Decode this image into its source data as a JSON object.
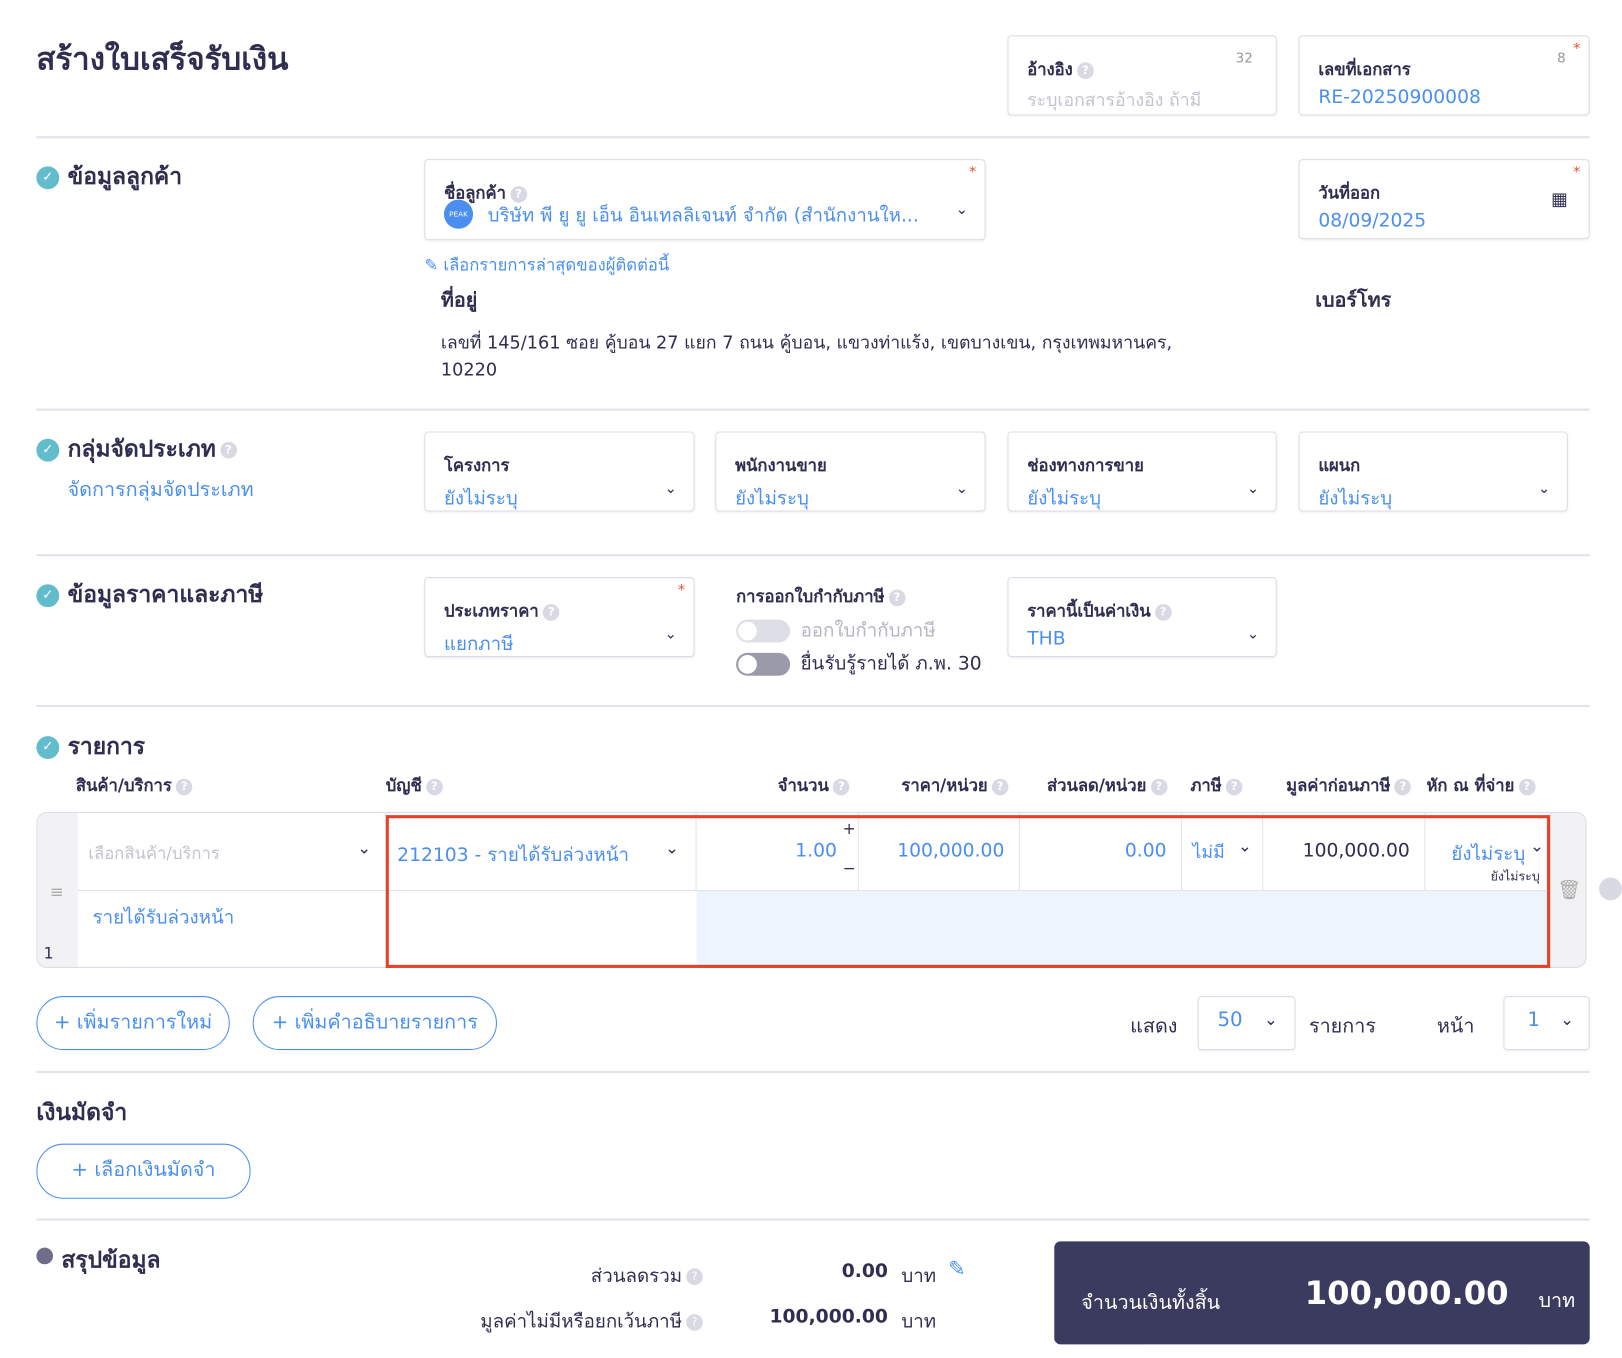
{
  "header": {
    "title": "สร้างใบเสร็จรับเงิน",
    "reference": {
      "label": "อ้างอิง",
      "counter": "32",
      "placeholder": "ระบุเอกสารอ้างอิง ถ้ามี"
    },
    "doc_no": {
      "label": "เลขที่เอกสาร",
      "counter": "8",
      "value": "RE-20250900008"
    }
  },
  "customer": {
    "section": "ข้อมูลลูกค้า",
    "name_label": "ชื่อลูกค้า",
    "name_value": "บริษัท พี ยู ยู เอ็น อินเทลลิเจนท์ จำกัด (สำนักงานให...",
    "avatar_text": "PEAK",
    "recent_link": "เลือกรายการล่าสุดของผู้ติดต่อนี้",
    "address_label": "ที่อยู่",
    "address_line1": "เลขที่ 145/161 ซอย คู้บอน 27 แยก 7 ถนน คู้บอน, แขวงท่าแร้ง, เขตบางเขน, กรุงเทพมหานคร,",
    "address_line2": "10220",
    "phone_label": "เบอร์โทร",
    "date_label": "วันที่ออก",
    "date_value": "08/09/2025"
  },
  "group": {
    "section": "กลุ่มจัดประเภท",
    "manage_link": "จัดการกลุ่มจัดประเภท",
    "fields": [
      {
        "label": "โครงการ",
        "value": "ยังไม่ระบุ"
      },
      {
        "label": "พนักงานขาย",
        "value": "ยังไม่ระบุ"
      },
      {
        "label": "ช่องทางการขาย",
        "value": "ยังไม่ระบุ"
      },
      {
        "label": "แผนก",
        "value": "ยังไม่ระบุ"
      }
    ]
  },
  "pricing": {
    "section": "ข้อมูลราคาและภาษี",
    "price_type_label": "ประเภทราคา",
    "price_type_value": "แยกภาษี",
    "tax_invoice_label": "การออกใบกำกับภาษี",
    "toggle1": {
      "label": "ออกใบกำกับภาษี",
      "on": false
    },
    "toggle2": {
      "label": "ยื่นรับรู้รายได้ ภ.พ. 30",
      "on": false
    },
    "currency_label": "ราคานี้เป็นค่าเงิน",
    "currency_value": "THB"
  },
  "items": {
    "section": "รายการ",
    "columns": [
      "สินค้า/บริการ",
      "บัญชี",
      "จำนวน",
      "ราคา/หน่วย",
      "ส่วนลด/หน่วย",
      "ภาษี",
      "มูลค่าก่อนภาษี",
      "หัก ณ ที่จ่าย"
    ],
    "row": {
      "index": "1",
      "product_placeholder": "เลือกสินค้า/บริการ",
      "account": "212103 - รายได้รับล่วงหน้า",
      "quantity": "1.00",
      "price": "100,000.00",
      "discount": "0.00",
      "tax": "ไม่มี",
      "pretax": "100,000.00",
      "withholding": "ยังไม่ระบุ",
      "withholding_sub": "ยังไม่ระบุ",
      "description": "รายได้รับล่วงหน้า",
      "plus": "+",
      "minus": "−"
    },
    "add_item": "+ เพิ่มรายการใหม่",
    "add_desc": "+ เพิ่มคำอธิบายรายการ",
    "show_label": "แสดง",
    "page_size": "50",
    "items_label": "รายการ",
    "page_label": "หน้า",
    "page": "1"
  },
  "deposit": {
    "section": "เงินมัดจำ",
    "button": "+ เลือกเงินมัดจำ"
  },
  "summary": {
    "section": "สรุปข้อมูล",
    "discount_label": "ส่วนลดรวม",
    "discount_value": "0.00",
    "exempt_label": "มูลค่าไม่มีหรือยกเว้นภาษี",
    "exempt_value": "100,000.00",
    "currency": "บาท",
    "total_label": "จำนวนเงินทั้งสิ้น",
    "total_value": "100,000.00",
    "total_currency": "บาท"
  },
  "colors": {
    "accent": "#4a8ff0",
    "check": "#62bccb",
    "highlight_border": "#e8412a",
    "total_bg": "#3b3a5f"
  }
}
